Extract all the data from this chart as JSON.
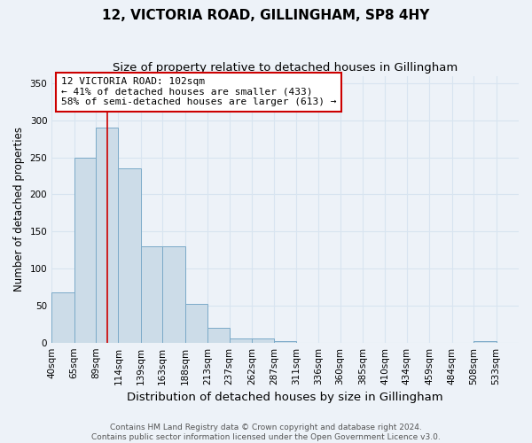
{
  "title": "12, VICTORIA ROAD, GILLINGHAM, SP8 4HY",
  "subtitle": "Size of property relative to detached houses in Gillingham",
  "xlabel": "Distribution of detached houses by size in Gillingham",
  "ylabel": "Number of detached properties",
  "bar_edges": [
    40,
    65,
    89,
    114,
    139,
    163,
    188,
    213,
    237,
    262,
    287,
    311,
    336,
    360,
    385,
    410,
    434,
    459,
    484,
    508,
    533
  ],
  "bar_heights": [
    68,
    250,
    290,
    235,
    130,
    130,
    52,
    20,
    5,
    5,
    2,
    0,
    0,
    0,
    0,
    0,
    0,
    0,
    0,
    2,
    0
  ],
  "bar_color": "#ccdce8",
  "bar_edge_color": "#7baac8",
  "bar_linewidth": 0.7,
  "property_size": 102,
  "red_line_color": "#cc0000",
  "annotation_text": "12 VICTORIA ROAD: 102sqm\n← 41% of detached houses are smaller (433)\n58% of semi-detached houses are larger (613) →",
  "annotation_box_color": "#ffffff",
  "annotation_box_edge": "#cc0000",
  "ylim": [
    0,
    360
  ],
  "yticks": [
    0,
    50,
    100,
    150,
    200,
    250,
    300,
    350
  ],
  "background_color": "#edf2f8",
  "grid_color": "#d8e4f0",
  "footer_text": "Contains HM Land Registry data © Crown copyright and database right 2024.\nContains public sector information licensed under the Open Government Licence v3.0.",
  "title_fontsize": 11,
  "subtitle_fontsize": 9.5,
  "xlabel_fontsize": 9.5,
  "ylabel_fontsize": 8.5,
  "tick_fontsize": 7.5,
  "annotation_fontsize": 8,
  "footer_fontsize": 6.5
}
